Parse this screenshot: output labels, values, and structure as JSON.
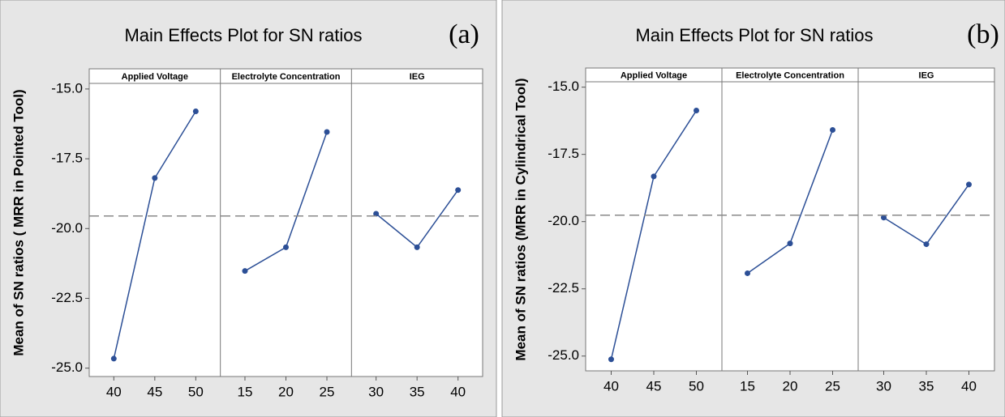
{
  "chart_data": [
    {
      "type": "line",
      "title": "Main Effects Plot for SN ratios",
      "tag": "(a)",
      "y_label": "Mean of SN ratios ( MRR in Pointed Tool)",
      "ylim": [
        -25.3,
        -14.8
      ],
      "yticks": [
        {
          "value": -15,
          "label": "-15.0"
        },
        -17.5,
        {
          "value": -20,
          "label": "-20.0"
        },
        -22.5,
        {
          "value": -25,
          "label": "-25.0"
        }
      ],
      "mean": -19.55,
      "color": "#2c4f96",
      "panels": [
        {
          "name": "Applied Voltage",
          "categories": [
            "40",
            "45",
            "50"
          ],
          "values": [
            -24.66,
            -18.19,
            -15.8
          ]
        },
        {
          "name": "Electrolyte Concentration",
          "categories": [
            "15",
            "20",
            "25"
          ],
          "values": [
            -21.52,
            -20.67,
            -16.54
          ]
        },
        {
          "name": "IEG",
          "categories": [
            "30",
            "35",
            "40"
          ],
          "values": [
            -19.47,
            -20.67,
            -18.62
          ]
        }
      ]
    },
    {
      "type": "line",
      "title": "Main Effects Plot for SN ratios",
      "tag": "(b)",
      "y_label": "Mean of SN ratios (MRR in Cylindrical Tool)",
      "ylim": [
        -25.55,
        -14.8
      ],
      "yticks": [
        {
          "value": -15,
          "label": "-15.0"
        },
        -17.5,
        {
          "value": -20,
          "label": "-20.0"
        },
        -22.5,
        {
          "value": -25,
          "label": "-25.0"
        }
      ],
      "mean": -19.76,
      "color": "#2c4f96",
      "panels": [
        {
          "name": "Applied Voltage",
          "categories": [
            "40",
            "45",
            "50"
          ],
          "values": [
            -25.12,
            -18.32,
            -15.87
          ]
        },
        {
          "name": "Electrolyte Concentration",
          "categories": [
            "15",
            "20",
            "25"
          ],
          "values": [
            -21.92,
            -20.81,
            -16.59
          ]
        },
        {
          "name": "IEG",
          "categories": [
            "30",
            "35",
            "40"
          ],
          "values": [
            -19.85,
            -20.84,
            -18.62
          ]
        }
      ]
    }
  ]
}
